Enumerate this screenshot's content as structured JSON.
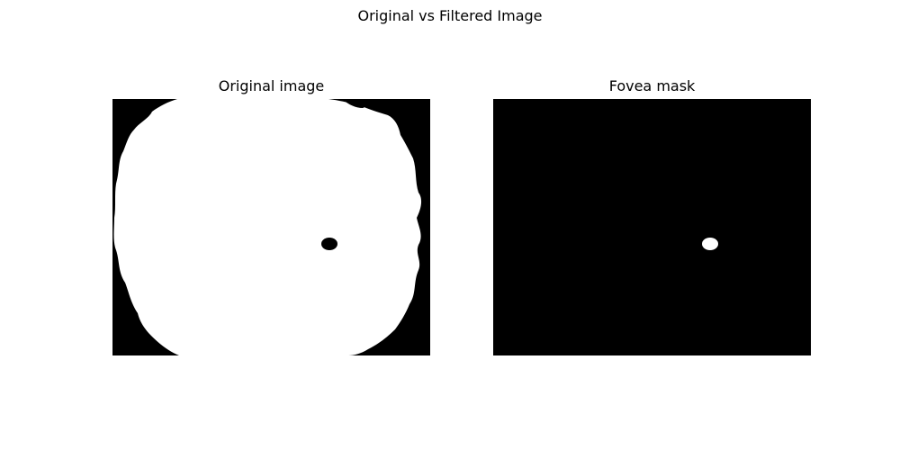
{
  "figure": {
    "title": "Original vs Filtered Image"
  },
  "panels": [
    {
      "title": "Original image",
      "content": "binary retina mask: white field of view on black background with small black fovea spot",
      "colors": {
        "background": "#000000",
        "foreground": "#ffffff"
      }
    },
    {
      "title": "Fovea mask",
      "content": "black image with single small white fovea blob",
      "colors": {
        "background": "#000000",
        "foreground": "#ffffff"
      }
    }
  ]
}
